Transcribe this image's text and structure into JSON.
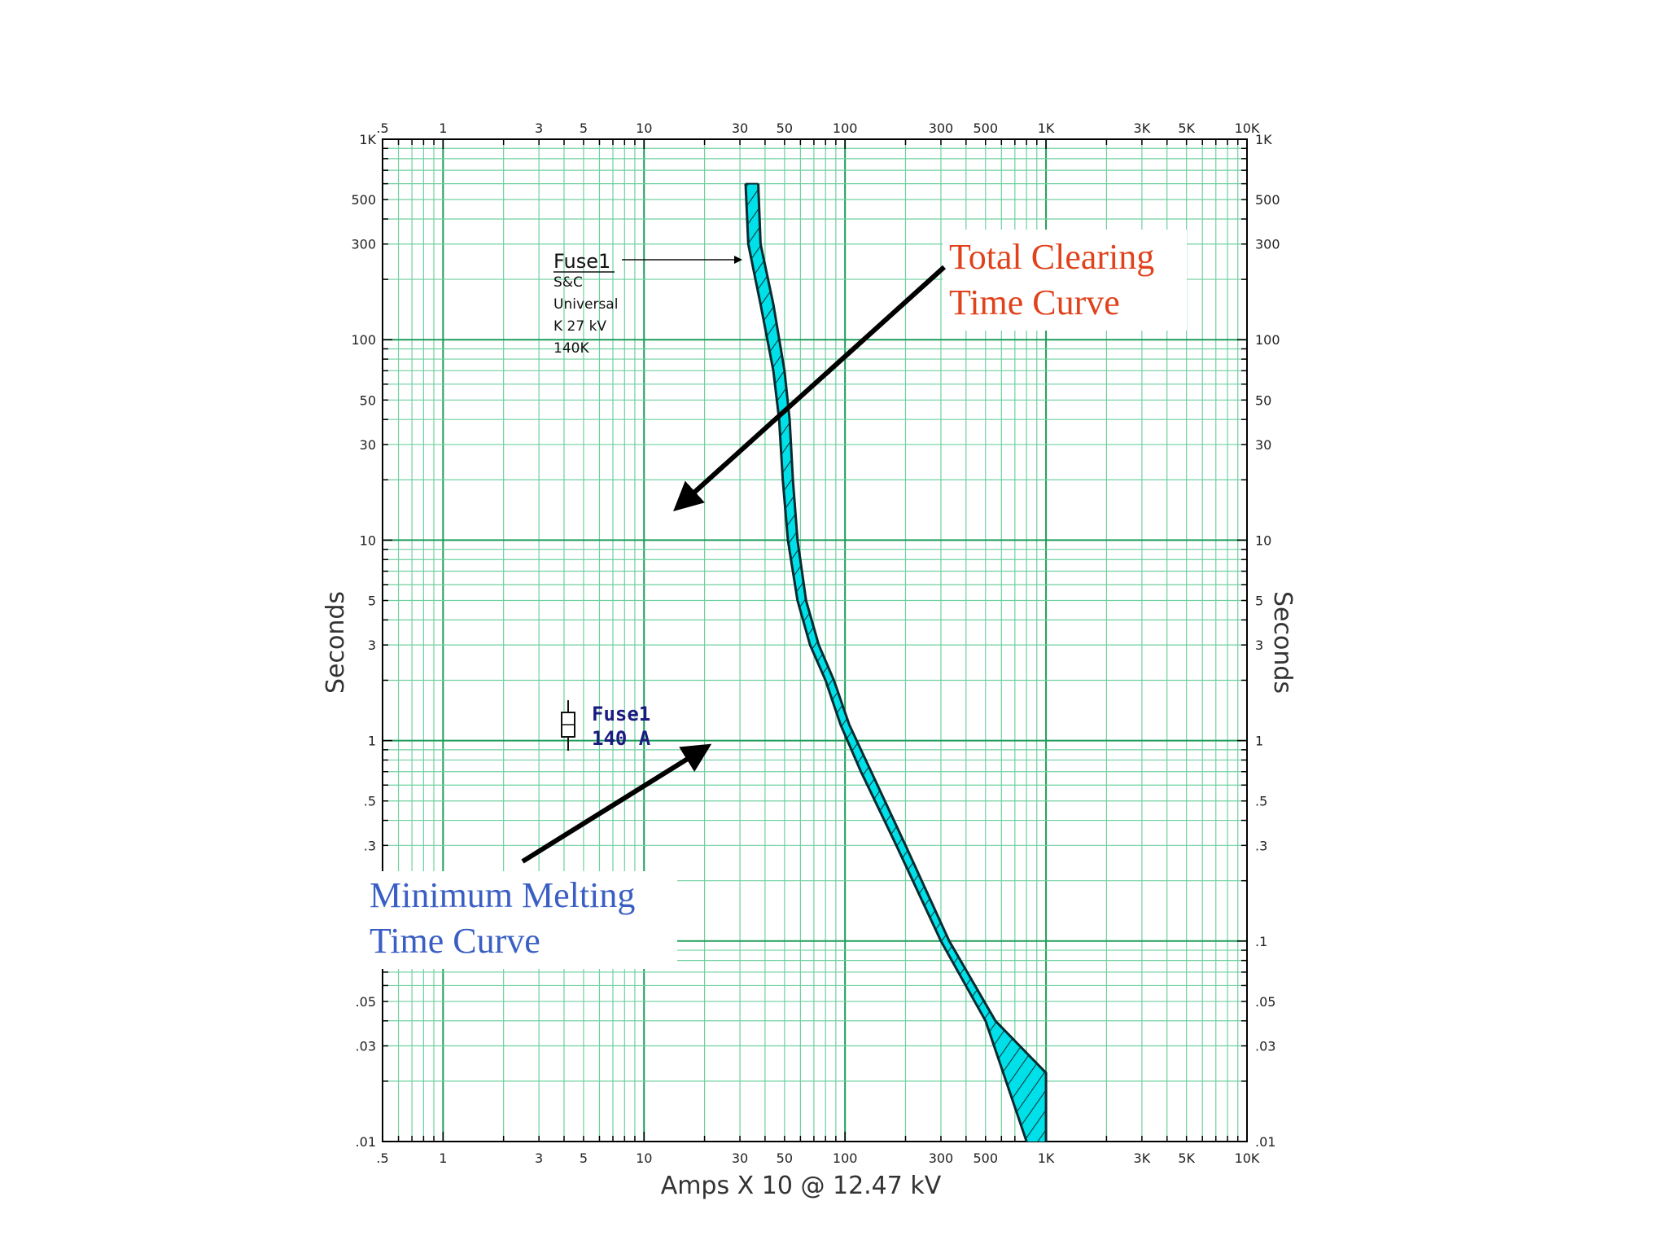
{
  "chart_data": {
    "type": "line",
    "xlabel": "Amps X 10 @ 12.47 kV",
    "ylabel": "Seconds",
    "ylabel_right": "Seconds",
    "x_scale": "log",
    "y_scale": "log",
    "xlim": [
      0.5,
      10000
    ],
    "ylim": [
      0.01,
      1000
    ],
    "x_ticks": [
      {
        "v": 0.5,
        "label": ".5"
      },
      {
        "v": 1,
        "label": "1"
      },
      {
        "v": 3,
        "label": "3"
      },
      {
        "v": 5,
        "label": "5"
      },
      {
        "v": 10,
        "label": "10"
      },
      {
        "v": 30,
        "label": "30"
      },
      {
        "v": 50,
        "label": "50"
      },
      {
        "v": 100,
        "label": "100"
      },
      {
        "v": 300,
        "label": "300"
      },
      {
        "v": 500,
        "label": "500"
      },
      {
        "v": 1000,
        "label": "1K"
      },
      {
        "v": 3000,
        "label": "3K"
      },
      {
        "v": 5000,
        "label": "5K"
      },
      {
        "v": 10000,
        "label": "10K"
      }
    ],
    "y_ticks": [
      {
        "v": 1000,
        "label": "1K"
      },
      {
        "v": 500,
        "label": "500"
      },
      {
        "v": 300,
        "label": "300"
      },
      {
        "v": 100,
        "label": "100"
      },
      {
        "v": 50,
        "label": "50"
      },
      {
        "v": 30,
        "label": "30"
      },
      {
        "v": 10,
        "label": "10"
      },
      {
        "v": 5,
        "label": "5"
      },
      {
        "v": 3,
        "label": "3"
      },
      {
        "v": 1,
        "label": "1"
      },
      {
        "v": 0.5,
        "label": ".5"
      },
      {
        "v": 0.3,
        "label": ".3"
      },
      {
        "v": 0.1,
        "label": ".1"
      },
      {
        "v": 0.05,
        "label": ".05"
      },
      {
        "v": 0.03,
        "label": ".03"
      },
      {
        "v": 0.01,
        "label": ".01"
      }
    ],
    "grid": true,
    "series": [
      {
        "name": "Minimum Melting Time Curve",
        "color": "#00e0e8",
        "points": [
          [
            32,
            600
          ],
          [
            33,
            300
          ],
          [
            38,
            150
          ],
          [
            44,
            70
          ],
          [
            47,
            40
          ],
          [
            49,
            20
          ],
          [
            52,
            10
          ],
          [
            58,
            5
          ],
          [
            67,
            3
          ],
          [
            80,
            2
          ],
          [
            95,
            1.2
          ],
          [
            120,
            0.7
          ],
          [
            180,
            0.3
          ],
          [
            300,
            0.1
          ],
          [
            500,
            0.04
          ],
          [
            800,
            0.01
          ]
        ]
      },
      {
        "name": "Total Clearing Time Curve",
        "color": "#00e0e8",
        "points": [
          [
            37,
            600
          ],
          [
            38,
            300
          ],
          [
            44,
            150
          ],
          [
            50,
            70
          ],
          [
            53,
            40
          ],
          [
            55,
            20
          ],
          [
            58,
            10
          ],
          [
            64,
            5
          ],
          [
            74,
            3
          ],
          [
            88,
            2
          ],
          [
            105,
            1.2
          ],
          [
            135,
            0.7
          ],
          [
            200,
            0.3
          ],
          [
            330,
            0.1
          ],
          [
            560,
            0.04
          ],
          [
            1000,
            0.022
          ],
          [
            1000,
            0.01
          ]
        ]
      }
    ],
    "annotations": {
      "fuse_name": "Fuse1",
      "fuse_desc": [
        "S&C",
        "Universal",
        "K 27 kV",
        "140K"
      ],
      "fuse_legend": [
        "Fuse1",
        "140 A"
      ],
      "total_clearing": [
        "Total Clearing",
        "Time Curve"
      ],
      "minimum_melting": [
        "Minimum Melting",
        "Time Curve"
      ],
      "red_color": "#e0421c",
      "blue_color": "#3a5fc4"
    },
    "colors": {
      "grid_major": "#1e9e5a",
      "grid_minor": "#6fd0a0",
      "band_fill": "#00e0e8",
      "hatch": "#0a3a40"
    }
  }
}
